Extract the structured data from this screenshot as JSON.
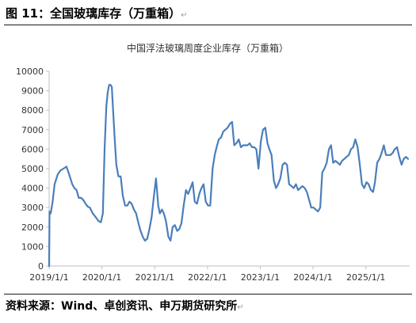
{
  "figure": {
    "title": "图 11：全国玻璃库存（万重箱）",
    "source": "资料来源：Wind、卓创资讯、申万期货研究所"
  },
  "chart_data": {
    "type": "line",
    "title": "中国浮法玻璃周度企业库存（万重箱）",
    "xlabel": "",
    "ylabel": "",
    "xlim": [
      "2019-01-01",
      "2025-10-31"
    ],
    "ylim": [
      0,
      10000
    ],
    "y_ticks": [
      "0",
      "1000",
      "2000",
      "3000",
      "4000",
      "5000",
      "6000",
      "7000",
      "8000",
      "9000",
      "10000"
    ],
    "x_ticks": [
      "2019/1/1",
      "2020/1/1",
      "2021/1/1",
      "2022/1/1",
      "2023/1/1",
      "2024/1/1",
      "2025/1/1"
    ],
    "x_tick_dates": [
      "2019-01-01",
      "2020-01-01",
      "2021-01-01",
      "2022-01-01",
      "2023-01-01",
      "2024-01-01",
      "2025-01-01"
    ],
    "grid": false,
    "legend": "none",
    "line_color": "#4a7ebb",
    "series": [
      {
        "name": "",
        "x": [
          "2019-01-01",
          "2019-01-04",
          "2019-01-12",
          "2019-01-25",
          "2019-02-08",
          "2019-03-01",
          "2019-03-20",
          "2019-04-10",
          "2019-05-01",
          "2019-05-20",
          "2019-06-10",
          "2019-06-25",
          "2019-07-10",
          "2019-07-25",
          "2019-08-10",
          "2019-08-25",
          "2019-09-10",
          "2019-09-25",
          "2019-10-10",
          "2019-10-30",
          "2019-11-20",
          "2019-12-10",
          "2019-12-25",
          "2020-01-08",
          "2020-01-20",
          "2020-02-01",
          "2020-02-10",
          "2020-02-20",
          "2020-03-01",
          "2020-03-10",
          "2020-03-20",
          "2020-03-30",
          "2020-04-10",
          "2020-04-25",
          "2020-05-10",
          "2020-05-25",
          "2020-06-10",
          "2020-06-25",
          "2020-07-10",
          "2020-07-25",
          "2020-08-10",
          "2020-08-25",
          "2020-09-10",
          "2020-09-25",
          "2020-10-10",
          "2020-10-25",
          "2020-11-10",
          "2020-11-25",
          "2020-12-10",
          "2020-12-25",
          "2021-01-10",
          "2021-01-25",
          "2021-02-05",
          "2021-02-20",
          "2021-03-05",
          "2021-03-20",
          "2021-04-05",
          "2021-04-20",
          "2021-05-05",
          "2021-05-20",
          "2021-06-05",
          "2021-06-20",
          "2021-07-05",
          "2021-07-20",
          "2021-08-05",
          "2021-08-20",
          "2021-09-05",
          "2021-09-20",
          "2021-10-05",
          "2021-10-20",
          "2021-11-05",
          "2021-11-20",
          "2021-12-05",
          "2021-12-20",
          "2022-01-05",
          "2022-01-20",
          "2022-02-05",
          "2022-02-20",
          "2022-03-05",
          "2022-03-20",
          "2022-04-05",
          "2022-04-20",
          "2022-05-05",
          "2022-05-20",
          "2022-06-05",
          "2022-06-20",
          "2022-07-05",
          "2022-07-20",
          "2022-08-05",
          "2022-08-20",
          "2022-09-05",
          "2022-09-20",
          "2022-10-05",
          "2022-10-20",
          "2022-11-05",
          "2022-11-20",
          "2022-12-05",
          "2022-12-20",
          "2023-01-05",
          "2023-01-20",
          "2023-02-05",
          "2023-02-20",
          "2023-03-05",
          "2023-03-20",
          "2023-04-05",
          "2023-04-20",
          "2023-05-05",
          "2023-05-20",
          "2023-06-05",
          "2023-06-20",
          "2023-07-05",
          "2023-07-20",
          "2023-08-05",
          "2023-08-20",
          "2023-09-05",
          "2023-09-20",
          "2023-10-05",
          "2023-10-20",
          "2023-11-05",
          "2023-11-20",
          "2023-12-05",
          "2023-12-20",
          "2024-01-05",
          "2024-01-20",
          "2024-02-05",
          "2024-02-20",
          "2024-03-05",
          "2024-03-20",
          "2024-04-05",
          "2024-04-20",
          "2024-05-05",
          "2024-05-20",
          "2024-06-05",
          "2024-06-20",
          "2024-07-05",
          "2024-07-20",
          "2024-08-05",
          "2024-08-20",
          "2024-09-05",
          "2024-09-20",
          "2024-10-05",
          "2024-10-20",
          "2024-11-05",
          "2024-11-20",
          "2024-12-05",
          "2024-12-20",
          "2025-01-05",
          "2025-01-20",
          "2025-02-05",
          "2025-02-20",
          "2025-03-05",
          "2025-03-20",
          "2025-04-05",
          "2025-04-20",
          "2025-05-05",
          "2025-05-20",
          "2025-06-05",
          "2025-06-20",
          "2025-07-05",
          "2025-07-20",
          "2025-08-05",
          "2025-08-20",
          "2025-09-05",
          "2025-09-20",
          "2025-10-05",
          "2025-10-20"
        ],
        "values": [
          0,
          2800,
          2700,
          3300,
          4200,
          4700,
          4900,
          5000,
          5100,
          4700,
          4200,
          4000,
          3900,
          3500,
          3500,
          3400,
          3200,
          3050,
          3000,
          2700,
          2500,
          2300,
          2250,
          2700,
          6000,
          8200,
          8900,
          9300,
          9300,
          9200,
          7800,
          6500,
          5200,
          4600,
          4600,
          3600,
          3100,
          3100,
          3300,
          3200,
          2900,
          2700,
          2200,
          1800,
          1500,
          1300,
          1400,
          1900,
          2500,
          3500,
          4500,
          3100,
          2700,
          2900,
          2700,
          2300,
          1500,
          1300,
          2000,
          2100,
          1800,
          1900,
          2200,
          3100,
          3900,
          3700,
          4000,
          4300,
          3300,
          3200,
          3700,
          4000,
          4200,
          3300,
          3100,
          3100,
          5000,
          5700,
          6100,
          6500,
          6600,
          6900,
          7000,
          7100,
          7300,
          7400,
          6200,
          6300,
          6500,
          6100,
          6200,
          6200,
          6200,
          6300,
          6100,
          6100,
          6000,
          5000,
          6400,
          7000,
          7100,
          6300,
          6000,
          5700,
          4400,
          4000,
          4200,
          4500,
          5200,
          5300,
          5200,
          4200,
          4100,
          4000,
          4200,
          3900,
          4000,
          4100,
          4000,
          3800,
          3400,
          3000,
          3000,
          2900,
          2800,
          3000,
          4800,
          5000,
          5300,
          6000,
          6200,
          5300,
          5400,
          5300,
          5200,
          5400,
          5500,
          5600,
          5700,
          6000,
          6100,
          6500,
          6100,
          5200,
          4200,
          4000,
          4300,
          4200,
          3900,
          3800,
          4300,
          5300,
          5500,
          5800,
          6200,
          5700,
          5700,
          5700,
          5800,
          6000,
          6100,
          5600,
          5200,
          5500,
          5600,
          5500
        ]
      }
    ]
  }
}
